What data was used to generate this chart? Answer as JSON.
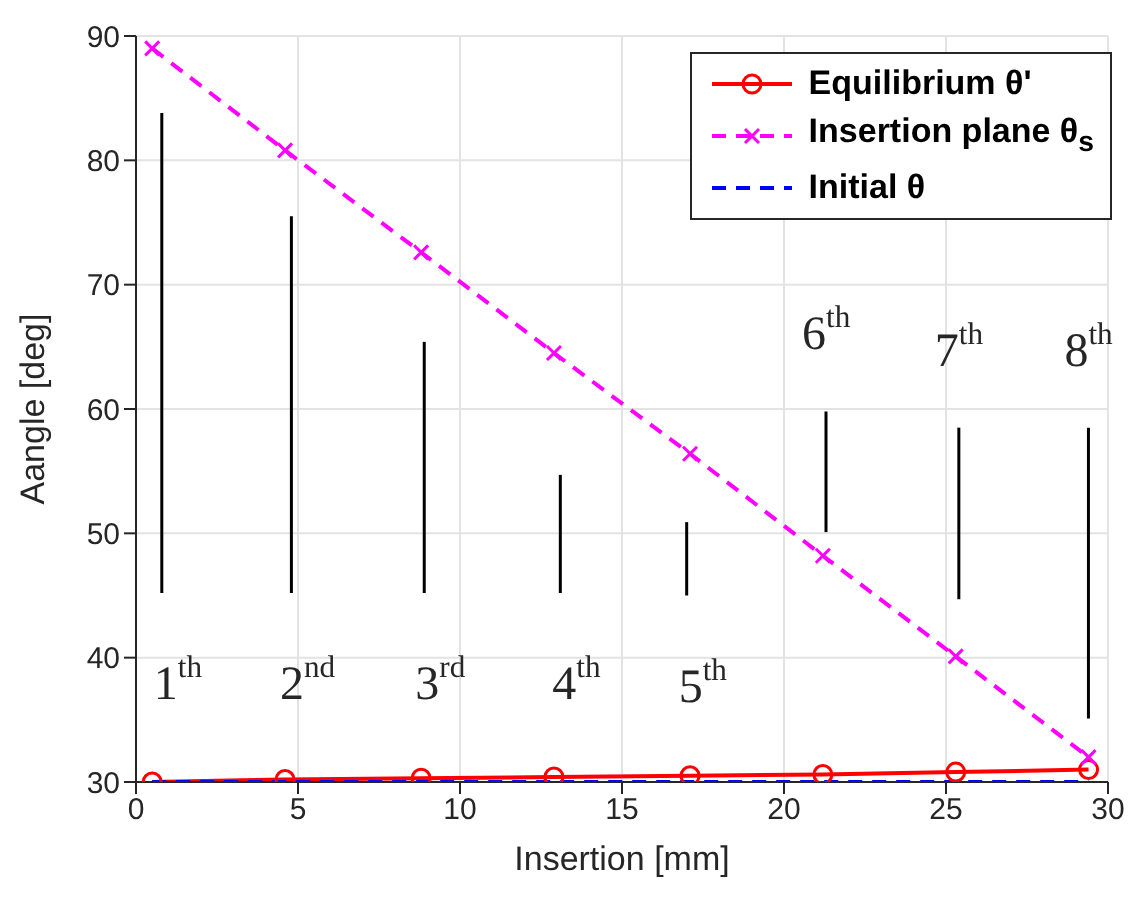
{
  "chart_data": {
    "type": "line",
    "xlabel": "Insertion [mm]",
    "ylabel": "Aangle [deg]",
    "x": [
      0.5,
      4.6,
      8.8,
      12.9,
      17.1,
      21.2,
      25.3,
      29.4
    ],
    "series": [
      {
        "name": "Equilibrium θ'",
        "color": "#ff0000",
        "marker": "circle",
        "line_style": "solid",
        "values": [
          30,
          30.2,
          30.3,
          30.4,
          30.5,
          30.6,
          30.8,
          31
        ]
      },
      {
        "name": "Insertion plane θ$_{s}$",
        "color": "#ff00ff",
        "marker": "cross",
        "line_style": "dashed",
        "values": [
          89,
          80.8,
          72.6,
          64.5,
          56.4,
          48.2,
          40.1,
          32
        ]
      },
      {
        "name": "Initial θ",
        "color": "#0000ff",
        "marker": "none",
        "line_style": "dashed",
        "values": [
          30,
          30,
          30,
          30,
          30,
          30,
          30,
          30
        ]
      },
      {
        "type": "bar",
        "color": "#000000",
        "x": [
          0.8,
          4.8,
          8.9,
          13.1,
          17,
          21.3,
          25.4,
          29.4
        ],
        "base": [
          45.2,
          45.2,
          45.2,
          45.2,
          45,
          50.1,
          44.7,
          35.1
        ],
        "values": [
          38.6,
          30.3,
          20.2,
          9.5,
          5.9,
          9.7,
          13.8,
          23.4
        ]
      }
    ],
    "xlim": [
      0,
      30
    ],
    "xticks": [
      0,
      5,
      10,
      15,
      20,
      25,
      30
    ],
    "ylim": [
      30,
      90
    ],
    "yticks": [
      30,
      40,
      50,
      60,
      70,
      80,
      90
    ],
    "grid": true,
    "legend": "top right",
    "annotations": [
      "1$^{th}$",
      "2$^{nd}$",
      "3$^{rd}$",
      "4$^{th}$",
      "5$^{th}$",
      "6$^{th}$",
      "7$^{th}$",
      "8$^{th}$"
    ]
  }
}
